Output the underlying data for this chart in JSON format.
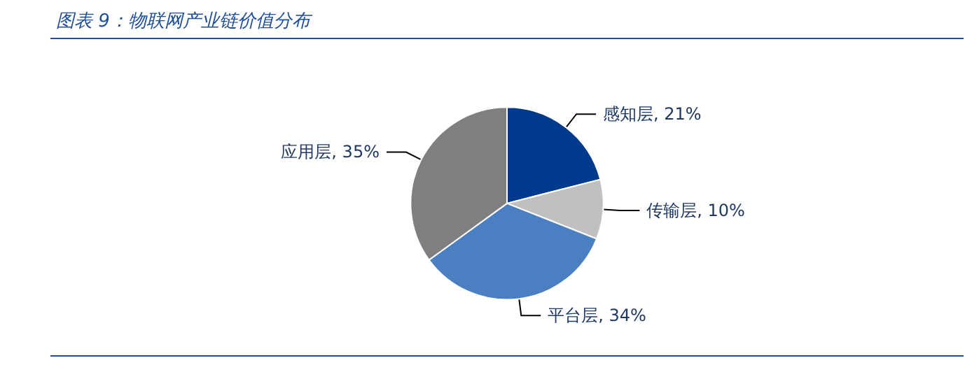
{
  "chart_data": {
    "type": "pie",
    "title": "图表 9：物联网产业链价值分布",
    "categories": [
      "感知层",
      "传输层",
      "平台层",
      "应用层"
    ],
    "values": [
      21,
      10,
      34,
      35
    ],
    "value_labels": [
      "21%",
      "10%",
      "34%",
      "35%"
    ],
    "colors": [
      "#003a8c",
      "#c0c0c0",
      "#4a7fc1",
      "#7f7f7f"
    ],
    "legend": false
  }
}
